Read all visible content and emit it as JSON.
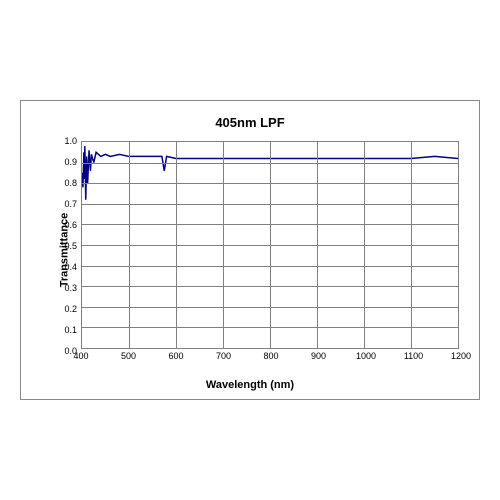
{
  "chart": {
    "type": "line",
    "title": "405nm LPF",
    "title_fontsize": 13,
    "xlabel": "Wavelength (nm)",
    "ylabel": "Transmittance",
    "label_fontsize": 11,
    "xlim": [
      400,
      1200
    ],
    "ylim": [
      0.0,
      1.0
    ],
    "xtick_step": 100,
    "ytick_step": 0.1,
    "x_ticks": [
      400,
      500,
      600,
      700,
      800,
      900,
      1000,
      1100,
      1200
    ],
    "y_ticks": [
      "0.0",
      "0.1",
      "0.2",
      "0.3",
      "0.4",
      "0.5",
      "0.6",
      "0.7",
      "0.8",
      "0.9",
      "1.0"
    ],
    "grid_color": "#808080",
    "background_color": "#ffffff",
    "border_color": "#888888",
    "line_color": "#000080",
    "line_width": 1.5,
    "tick_fontsize": 9,
    "series": {
      "x": [
        400,
        402,
        404,
        405,
        406,
        408,
        410,
        412,
        415,
        418,
        420,
        425,
        430,
        440,
        450,
        460,
        480,
        500,
        520,
        540,
        560,
        570,
        575,
        580,
        600,
        620,
        650,
        680,
        700,
        750,
        800,
        850,
        900,
        950,
        1000,
        1050,
        1100,
        1150,
        1200
      ],
      "y": [
        0.85,
        0.78,
        0.95,
        0.82,
        0.98,
        0.72,
        0.93,
        0.8,
        0.96,
        0.86,
        0.94,
        0.9,
        0.95,
        0.93,
        0.94,
        0.93,
        0.94,
        0.93,
        0.93,
        0.93,
        0.93,
        0.93,
        0.86,
        0.93,
        0.92,
        0.92,
        0.92,
        0.92,
        0.92,
        0.92,
        0.92,
        0.92,
        0.92,
        0.92,
        0.92,
        0.92,
        0.92,
        0.93,
        0.92
      ]
    }
  }
}
